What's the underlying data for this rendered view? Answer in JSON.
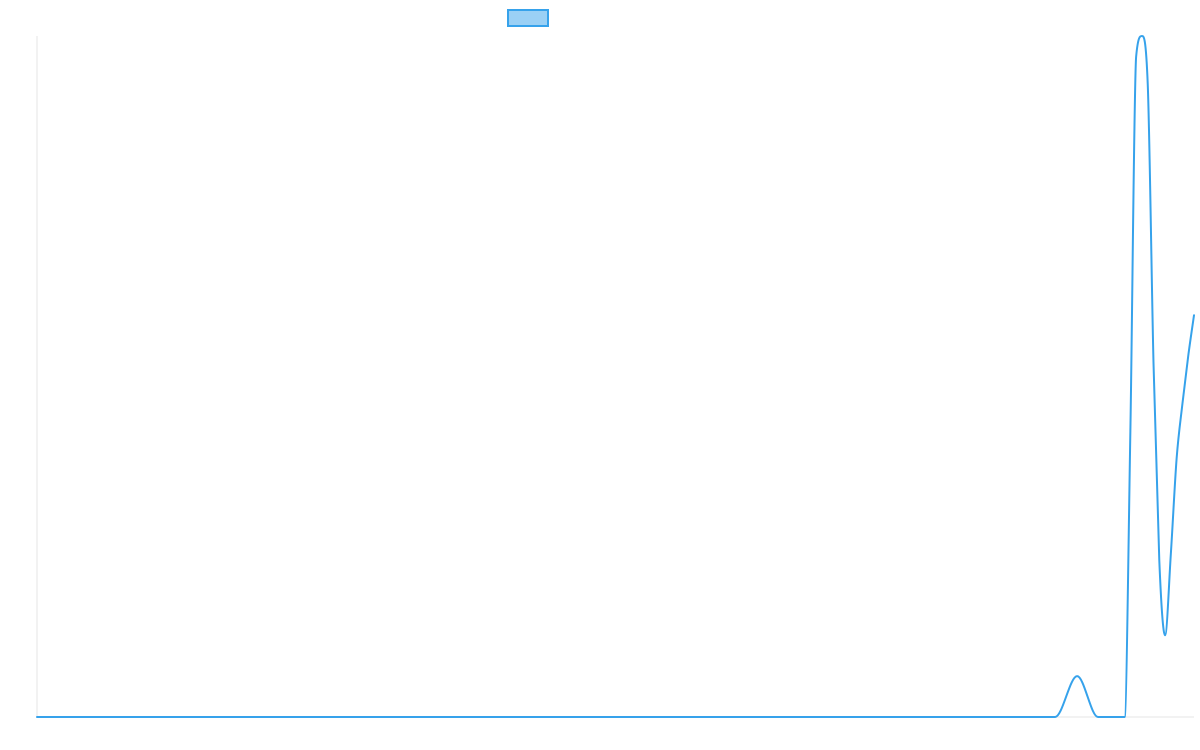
{
  "chart_data": {
    "type": "line",
    "title": "",
    "xlabel": "",
    "ylabel": "",
    "grid": false,
    "legend": {
      "placement": "top-center",
      "entries": [
        {
          "name": ""
        }
      ]
    },
    "xlim": [
      0,
      1000
    ],
    "ylim": [
      0,
      100
    ],
    "series": [
      {
        "name": "",
        "color": "#36a2eb",
        "fill": "#9ad0f5",
        "x": [
          0,
          800,
          880,
          899,
          917,
          939,
          940,
          945,
          950,
          955,
          960,
          965,
          970,
          975,
          980,
          985,
          990,
          995,
          1000
        ],
        "y": [
          0,
          0,
          0,
          6,
          0,
          0,
          0,
          42,
          97,
          100,
          93,
          52,
          23,
          12,
          24,
          38,
          46,
          53,
          59
        ]
      }
    ]
  }
}
